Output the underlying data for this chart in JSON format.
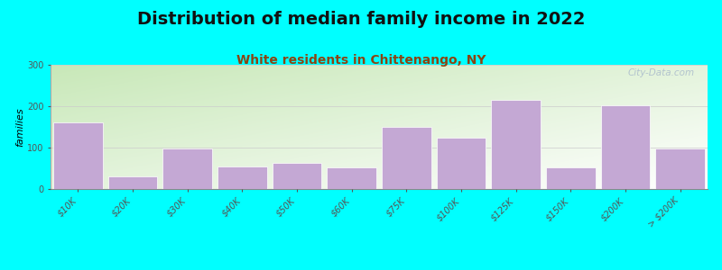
{
  "title": "Distribution of median family income in 2022",
  "subtitle": "White residents in Chittenango, NY",
  "ylabel": "families",
  "categories": [
    "$10K",
    "$20K",
    "$30K",
    "$40K",
    "$50K",
    "$60K",
    "$75K",
    "$100K",
    "$125K",
    "$150K",
    "$200K",
    "> $200K"
  ],
  "values": [
    160,
    30,
    97,
    55,
    62,
    52,
    150,
    125,
    215,
    52,
    203,
    98
  ],
  "bar_color": "#C4A8D4",
  "bar_edgecolor": "#ffffff",
  "background_color": "#00FFFF",
  "grad_top_left": "#c8e8b8",
  "grad_bottom_right": "#f5f5f5",
  "title_fontsize": 14,
  "subtitle_fontsize": 10,
  "ylabel_fontsize": 8,
  "tick_fontsize": 7,
  "ylim": [
    0,
    300
  ],
  "yticks": [
    0,
    100,
    200,
    300
  ],
  "watermark": "City-Data.com",
  "watermark_color": "#aabbcc",
  "grid_color": "#cccccc"
}
